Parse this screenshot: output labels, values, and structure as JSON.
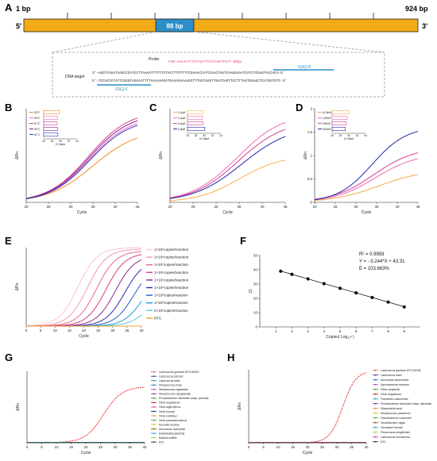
{
  "panels": {
    "A": {
      "label": "A",
      "start": "1 bp",
      "end": "924 bp",
      "five": "5'",
      "three": "3'",
      "amplicon": "88 bp",
      "probe_word": "Probe",
      "probe_seq": "FAM-AAAACTTTCTAGCTTCATCAGTTGTT-BHQ1",
      "gsq_r": "GSQ-R",
      "dna_target": "DNA target",
      "strand_top": "3'-AGGTCAGATAAGCCCATCCTTAAAATTTTTTCTACTTTCTTTTCGAAACCATCCAACTAGTCAAGGAAATCATCTCGAGTACCACA-5'",
      "strand_bottom": "5'-TCCAGTCTATTCGGGTAGGAATTTTAAAAAAGATGAAAGAAAAGCTTTGGTAGGTTGATCAGTTCCTTTAGTGGAGCTCATGGTGTC-3'",
      "gsq_f": "GSQ-F",
      "colors": {
        "bar": "#f2ac17",
        "amplicon": "#2c8fc7",
        "probe": "#e0407a",
        "primer": "#2c8fc7"
      }
    },
    "B": {
      "label": "B",
      "legend_title": "",
      "inset_xlabel": "Ct Value",
      "inset_ticks": [
        "26",
        "28",
        "30",
        "32",
        "34"
      ]
    },
    "C": {
      "label": "C",
      "inset_xlabel": "Ct Value",
      "inset_ticks": [
        "26",
        "28",
        "30",
        "32",
        "34"
      ]
    },
    "D": {
      "label": "D",
      "inset_xlabel": "Ct Value",
      "inset_ticks": [
        "26",
        "28",
        "30",
        "32",
        "34"
      ]
    },
    "E": {
      "label": "E"
    },
    "F": {
      "label": "F",
      "r2": "R² = 0.9993",
      "equation": "Y = −3.244*X + 43.31",
      "efficiency": "E = 103.663%"
    },
    "G": {
      "label": "G"
    },
    "H": {
      "label": "H"
    }
  },
  "chart_data": [
    {
      "id": "B",
      "type": "line",
      "xlabel": "Cycle",
      "ylabel": "ΔRn",
      "xlim": [
        20,
        45
      ],
      "ylim": [
        0,
        1.0
      ],
      "xticks": [
        20,
        25,
        30,
        35,
        40,
        45
      ],
      "series": [
        {
          "name": "53°C",
          "color": "#f28a1e",
          "ct": 31.0,
          "plateau": 0.78,
          "slope": 0.2
        },
        {
          "name": "55°C",
          "color": "#f06ab6",
          "ct": 30.2,
          "plateau": 0.92,
          "slope": 0.22
        },
        {
          "name": "57°C",
          "color": "#d63d93",
          "ct": 30.0,
          "plateau": 0.98,
          "slope": 0.22
        },
        {
          "name": "59°C",
          "color": "#8a1f8a",
          "ct": 30.1,
          "plateau": 0.95,
          "slope": 0.22
        },
        {
          "name": "61°C",
          "color": "#2a39c4",
          "ct": 30.3,
          "plateau": 0.9,
          "slope": 0.22
        }
      ]
    },
    {
      "id": "C",
      "type": "line",
      "xlabel": "Cycle",
      "ylabel": "ΔRn",
      "xlim": [
        20,
        45
      ],
      "ylim": [
        0,
        1.0
      ],
      "xticks": [
        20,
        25,
        30,
        35,
        40,
        45
      ],
      "series": [
        {
          "name": "0.2μM",
          "color": "#f6b34a",
          "ct": 31.0,
          "plateau": 0.5,
          "slope": 0.22
        },
        {
          "name": "0.4μM",
          "color": "#f06ab6",
          "ct": 30.6,
          "plateau": 0.96,
          "slope": 0.2
        },
        {
          "name": "0.6μM",
          "color": "#d63d93",
          "ct": 30.8,
          "plateau": 0.88,
          "slope": 0.2
        },
        {
          "name": "0.8μM",
          "color": "#1a2aa8",
          "ct": 31.6,
          "plateau": 0.82,
          "slope": 0.19
        }
      ]
    },
    {
      "id": "D",
      "type": "line",
      "xlabel": "Cycle",
      "ylabel": "ΔRn",
      "xlim": [
        20,
        45
      ],
      "ylim": [
        0,
        2.0
      ],
      "xticks": [
        20,
        25,
        30,
        35,
        40,
        45
      ],
      "yticks": [
        0,
        0.5,
        1.0,
        1.5,
        2.0
      ],
      "series": [
        {
          "name": "62.5nM",
          "color": "#f6a84a",
          "ct": 31.5,
          "plateau": 0.7,
          "slope": 0.18
        },
        {
          "name": "125nM",
          "color": "#f06ab6",
          "ct": 30.7,
          "plateau": 1.05,
          "slope": 0.2
        },
        {
          "name": "250nM",
          "color": "#d63d93",
          "ct": 30.3,
          "plateau": 1.18,
          "slope": 0.2
        },
        {
          "name": "500nM",
          "color": "#1a2aa8",
          "ct": 29.9,
          "plateau": 1.62,
          "slope": 0.24
        }
      ]
    },
    {
      "id": "E",
      "type": "line",
      "xlabel": "Cycle",
      "ylabel": "ΔRn",
      "xlim": [
        0,
        40
      ],
      "ylim": [
        0,
        1.2
      ],
      "xticks": [
        0,
        5,
        10,
        15,
        20,
        25,
        30,
        35,
        40
      ],
      "series": [
        {
          "name": "1×10⁹copies/reaction",
          "color": "#f7c6cf",
          "ct": 14.0,
          "plateau": 1.2,
          "slope": 0.3
        },
        {
          "name": "1×10⁸copies/reaction",
          "color": "#f29ab0",
          "ct": 17.3,
          "plateau": 1.18,
          "slope": 0.3
        },
        {
          "name": "1×10⁷copies/reaction",
          "color": "#e9659a",
          "ct": 20.5,
          "plateau": 1.15,
          "slope": 0.3
        },
        {
          "name": "1×10⁶copies/reaction",
          "color": "#d43c86",
          "ct": 23.7,
          "plateau": 1.12,
          "slope": 0.3
        },
        {
          "name": "1×10⁵copies/reaction",
          "color": "#8f2a8f",
          "ct": 27.0,
          "plateau": 1.08,
          "slope": 0.3
        },
        {
          "name": "1×10⁴copies/reaction",
          "color": "#2a2aa8",
          "ct": 30.2,
          "plateau": 1.02,
          "slope": 0.3
        },
        {
          "name": "1×10³copies/reaction",
          "color": "#1f5fd6",
          "ct": 33.4,
          "plateau": 0.95,
          "slope": 0.3
        },
        {
          "name": "1×10²copies/reaction",
          "color": "#1fa0d6",
          "ct": 36.7,
          "plateau": 0.85,
          "slope": 0.3
        },
        {
          "name": "2×10¹copies/reaction",
          "color": "#5cc8e8",
          "ct": 39.0,
          "plateau": 0.6,
          "slope": 0.3
        },
        {
          "name": "NTC",
          "color": "#f3a22a",
          "ct": 999,
          "plateau": 0,
          "slope": 0.3
        }
      ]
    },
    {
      "id": "F",
      "type": "scatter",
      "xlabel": "Copies( Log₁₀ˣ )",
      "ylabel": "Ct",
      "xlim": [
        0,
        10
      ],
      "ylim": [
        0,
        50
      ],
      "xticks": [
        1,
        2,
        3,
        4,
        5,
        6,
        7,
        8,
        9
      ],
      "yticks": [
        0,
        10,
        20,
        30,
        40,
        50
      ],
      "x": [
        1.301,
        2,
        3,
        4,
        5,
        6,
        7,
        8,
        9
      ],
      "y": [
        39.0,
        36.8,
        33.6,
        30.3,
        27.0,
        23.8,
        20.6,
        17.4,
        14.0
      ]
    },
    {
      "id": "G",
      "type": "line",
      "xlabel": "Cycle",
      "ylabel": "ΔRn",
      "xlim": [
        0,
        40
      ],
      "ylim": [
        0,
        1.5
      ],
      "xticks": [
        0,
        5,
        10,
        15,
        20,
        25,
        30,
        35,
        40
      ],
      "series": [
        {
          "name": "Lactococcus garvieae ATCC49921",
          "color": "#e81c1c",
          "ct": 22,
          "plateau": 1.18,
          "slope": 0.32,
          "dashed": true
        },
        {
          "name": "Lactococcus piscium",
          "color": "#4e2fa3",
          "flat": true
        },
        {
          "name": "Lactococcus lactis",
          "color": "#1ba5a0",
          "flat": true
        },
        {
          "name": "Streptococcus iniae",
          "color": "#2e6cd6",
          "flat": true
        },
        {
          "name": "Streptococcus agalactiae",
          "color": "#c93ec2",
          "flat": true
        },
        {
          "name": "Streptococcus dysgalactiae",
          "color": "#7f2cb0",
          "flat": true
        },
        {
          "name": "Photobacterium damselae subsp. piscicida",
          "color": "#2aa44a",
          "flat": true
        },
        {
          "name": "Vibrio anguillarum",
          "color": "#b02a2a",
          "flat": true
        },
        {
          "name": "Vibrio alginolyticus",
          "color": "#d63d93",
          "flat": true
        },
        {
          "name": "Vibrio harveyi",
          "color": "#1a2aa8",
          "flat": true
        },
        {
          "name": "Vibrio vulnificus",
          "color": "#f28a1e",
          "flat": true
        },
        {
          "name": "Vibrio parahaemolyticus",
          "color": "#3fb23f",
          "flat": true
        },
        {
          "name": "Nocardia seriolae",
          "color": "#e0c21a",
          "flat": true
        },
        {
          "name": "Aeromonas hydrophila",
          "color": "#8a5a2a",
          "flat": true
        },
        {
          "name": "Edwardsiella piscicida",
          "color": "#1fa0d6",
          "flat": true
        },
        {
          "name": "Bacillus subtilis",
          "color": "#9dcf3a",
          "flat": true
        },
        {
          "name": "NTC",
          "color": "#333333",
          "flat": true
        }
      ]
    },
    {
      "id": "H",
      "type": "line",
      "xlabel": "Cycle",
      "ylabel": "ΔRn",
      "xlim": [
        0,
        40
      ],
      "ylim": [
        0,
        1.5
      ],
      "xticks": [
        0,
        5,
        10,
        15,
        20,
        25,
        30,
        35,
        40
      ],
      "series": [
        {
          "name": "Lactococcus garvieae ATCC49156",
          "color": "#e81c1c",
          "ct": 28,
          "plateau": 1.48,
          "slope": 0.45,
          "dashed": true
        },
        {
          "name": "Lactococcus lactis",
          "color": "#4e2fa3",
          "flat": true
        },
        {
          "name": "Aeromonas salmonicida",
          "color": "#2e6cd6",
          "flat": true
        },
        {
          "name": "Mycobacterium marinum",
          "color": "#c93ec2",
          "flat": true
        },
        {
          "name": "Vibrio campbellii",
          "color": "#2aa44a",
          "flat": true
        },
        {
          "name": "Vibrio anguillarum",
          "color": "#b02a2a",
          "flat": true
        },
        {
          "name": "Francisella noatunensis",
          "color": "#1ba5a0",
          "flat": true
        },
        {
          "name": "Photobacterium damselae subsp. damselae",
          "color": "#7f2cb0",
          "flat": true
        },
        {
          "name": "Edwardsiella tarda",
          "color": "#f28a1e",
          "flat": true
        },
        {
          "name": "Streptococcus parauberis",
          "color": "#e0c21a",
          "flat": true
        },
        {
          "name": "Flavobacterium columnare",
          "color": "#3fb23f",
          "flat": true
        },
        {
          "name": "Tenacibaculum algae",
          "color": "#8a5a2a",
          "flat": true
        },
        {
          "name": "Citrobacter freundii",
          "color": "#1fa0d6",
          "flat": true
        },
        {
          "name": "Plesiomonas shigelloides",
          "color": "#9dcf3a",
          "flat": true
        },
        {
          "name": "Lactococcus formosensis",
          "color": "#d63d93",
          "flat": true
        },
        {
          "name": "NTC",
          "color": "#333333",
          "flat": true
        }
      ]
    }
  ]
}
